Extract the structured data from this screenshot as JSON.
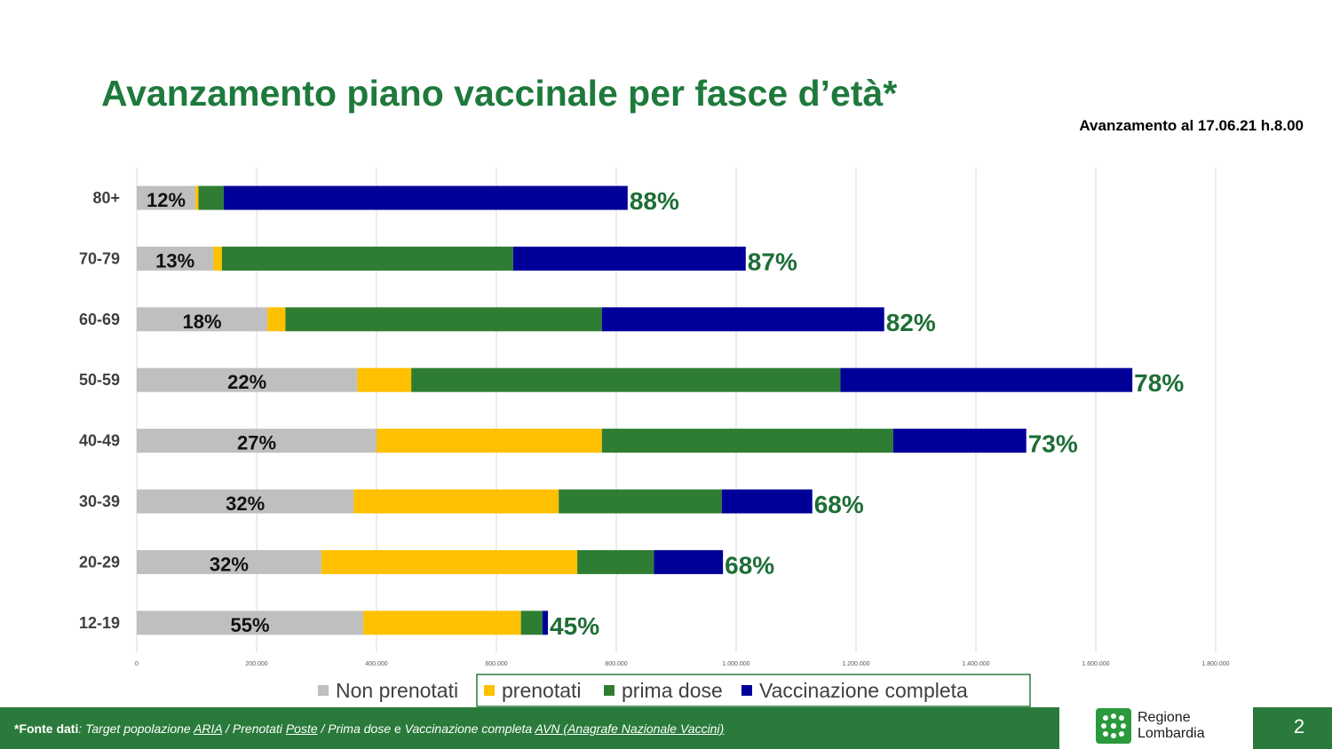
{
  "header": {
    "title": "Avanzamento piano vaccinale per fasce d’età*",
    "as_of": "Avanzamento al 17.06.21 h.8.00"
  },
  "chart_data": {
    "type": "bar",
    "orientation": "horizontal",
    "stacked": true,
    "categories": [
      "80+",
      "70-79",
      "60-69",
      "50-59",
      "40-49",
      "30-39",
      "20-29",
      "12-19"
    ],
    "series": [
      {
        "name": "Non prenotati",
        "color": "#bfbfbf",
        "values": [
          98000,
          128000,
          218000,
          368000,
          400000,
          362000,
          308000,
          378000
        ]
      },
      {
        "name": "prenotati",
        "color": "#ffc000",
        "values": [
          5000,
          14000,
          30000,
          90000,
          376000,
          342000,
          427000,
          263000
        ]
      },
      {
        "name": "prima dose",
        "color": "#2e7d32",
        "values": [
          42000,
          486000,
          528000,
          716000,
          486000,
          272000,
          128000,
          36000
        ]
      },
      {
        "name": "Vaccinazione completa",
        "color": "#000099",
        "values": [
          674000,
          388000,
          471000,
          487000,
          222000,
          151000,
          115000,
          9000
        ]
      }
    ],
    "left_labels": [
      "12%",
      "13%",
      "18%",
      "22%",
      "27%",
      "32%",
      "32%",
      "55%"
    ],
    "right_labels": [
      "88%",
      "87%",
      "82%",
      "78%",
      "73%",
      "68%",
      "68%",
      "45%"
    ],
    "x_ticks": [
      0,
      200000,
      400000,
      600000,
      800000,
      1000000,
      1200000,
      1400000,
      1600000,
      1800000
    ],
    "x_tick_labels": [
      "0",
      "200.000",
      "400.000",
      "600.000",
      "800.000",
      "1.000.000",
      "1.200.000",
      "1.400.000",
      "1.600.000",
      "1.800.000"
    ],
    "xlim": [
      0,
      1800000
    ],
    "grid": true,
    "legend_position": "bottom"
  },
  "footer": {
    "source_lead": "*Fonte dati",
    "source_colon": ": ",
    "source_target": "Target popolazione ",
    "source_aria": "ARIA",
    "source_sep1": " / Prenotati ",
    "source_poste": "Poste",
    "source_sep2": " /  Prima dose ",
    "source_e": "e",
    "source_vacc": " Vaccinazione completa ",
    "source_avn": "AVN (Anagrafe Nazionale Vaccini)",
    "logo_line1": "Regione",
    "logo_line2": "Lombardia",
    "page_number": "2"
  }
}
